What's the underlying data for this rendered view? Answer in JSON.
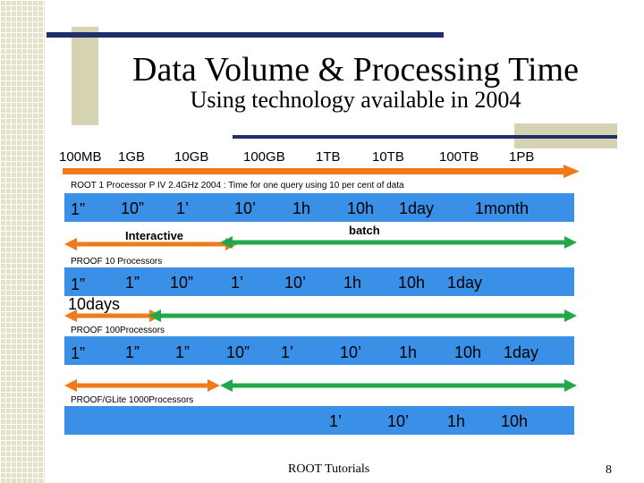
{
  "title": "Data Volume & Processing Time",
  "subtitle": "Using technology available in 2004",
  "scale_labels": [
    "100MB",
    "1GB",
    "10GB",
    "100GB",
    "1TB",
    "10TB",
    "100TB",
    "1PB"
  ],
  "sections": [
    {
      "label": "ROOT 1 Processor  P IV 2.4GHz  2004 : Time for one query using 10 per cent of data",
      "values": [
        "1”",
        "10”",
        "1’",
        "10’",
        "1h",
        "10h",
        "1day",
        "1month"
      ],
      "interactive_label": "Interactive",
      "batch_label": "batch"
    },
    {
      "label": "PROOF 10 Processors",
      "values": [
        "1”",
        "1”",
        "10”",
        "1’",
        "10’",
        "1h",
        "10h",
        "1day",
        "10days"
      ]
    },
    {
      "label": "PROOF 100Processors",
      "values": [
        "1”",
        "1”",
        "1”",
        "10”",
        "1’",
        "10’",
        "1h",
        "10h",
        "1day"
      ]
    },
    {
      "label": "PROOF/GLite 1000Processors",
      "values": [
        "1’",
        "10’",
        "1h",
        "10h"
      ]
    }
  ],
  "footer": "ROOT Tutorials",
  "page_number": "8",
  "colors": {
    "bar": "#3a8fe6",
    "orange_arrow": "#f07a1a",
    "green_arrow": "#22a84a",
    "navy_line": "#1f2f6a"
  }
}
